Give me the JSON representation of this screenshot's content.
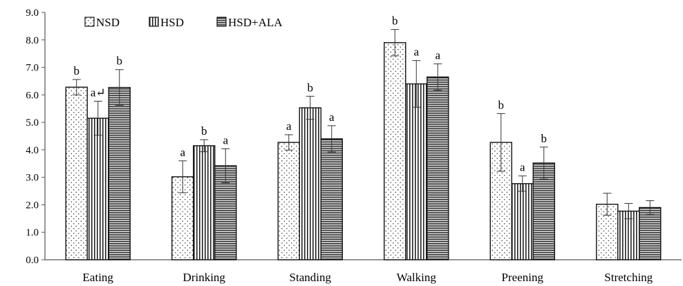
{
  "chart_data": {
    "type": "bar",
    "categories": [
      "Eating",
      "Drinking",
      "Standing",
      "Walking",
      "Preening",
      "Stretching"
    ],
    "series": [
      {
        "name": "NSD",
        "pattern": "dots",
        "values": [
          6.28,
          3.02,
          4.27,
          7.9,
          4.27,
          2.02
        ],
        "errors": [
          0.28,
          0.58,
          0.28,
          0.48,
          1.05,
          0.4
        ],
        "labels": [
          "b",
          "a",
          "a",
          "b",
          "b",
          ""
        ]
      },
      {
        "name": "HSD",
        "pattern": "vertical-lines",
        "values": [
          5.15,
          4.15,
          5.53,
          6.4,
          2.77,
          1.77
        ],
        "errors": [
          0.62,
          0.22,
          0.42,
          0.85,
          0.28,
          0.28
        ],
        "labels": [
          "a↵",
          "b",
          "b",
          "a",
          "a",
          ""
        ]
      },
      {
        "name": "HSD+ALA",
        "pattern": "horizontal-lines",
        "values": [
          6.27,
          3.42,
          4.4,
          6.65,
          3.52,
          1.9
        ],
        "errors": [
          0.65,
          0.62,
          0.48,
          0.48,
          0.58,
          0.25
        ],
        "labels": [
          "b",
          "a",
          "a",
          "a",
          "b",
          ""
        ]
      }
    ],
    "yticks": [
      "0.0",
      "1.0",
      "2.0",
      "3.0",
      "4.0",
      "5.0",
      "6.0",
      "7.0",
      "8.0",
      "9.0"
    ],
    "ylim": [
      0,
      9
    ],
    "legend_position": "top-left",
    "grid": false,
    "title": "",
    "xlabel": "",
    "ylabel": ""
  }
}
